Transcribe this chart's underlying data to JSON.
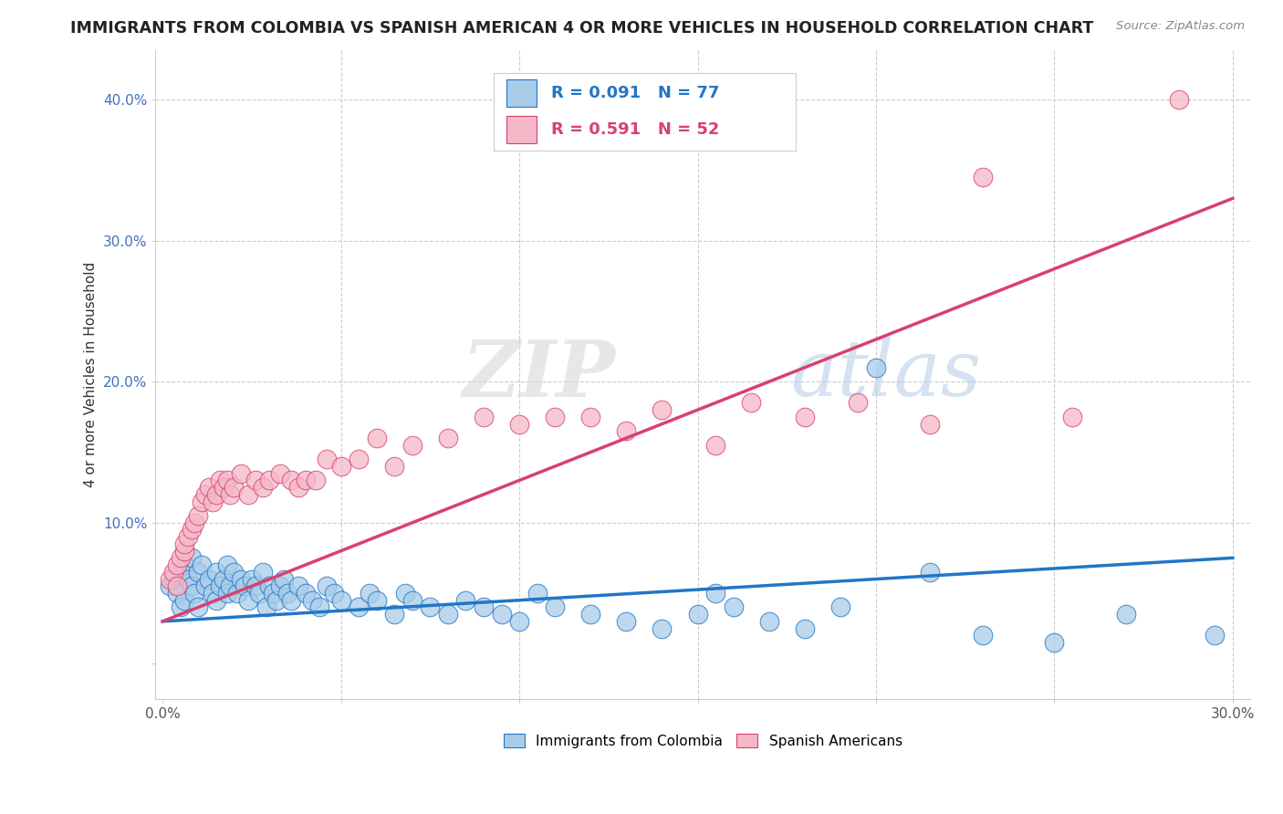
{
  "title": "IMMIGRANTS FROM COLOMBIA VS SPANISH AMERICAN 4 OR MORE VEHICLES IN HOUSEHOLD CORRELATION CHART",
  "source_text": "Source: ZipAtlas.com",
  "xlabel": "",
  "ylabel": "4 or more Vehicles in Household",
  "xlim": [
    -0.002,
    0.305
  ],
  "ylim": [
    -0.025,
    0.435
  ],
  "xticks": [
    0.0,
    0.05,
    0.1,
    0.15,
    0.2,
    0.25,
    0.3
  ],
  "xtick_labels": [
    "0.0%",
    "",
    "",
    "",
    "",
    "",
    "30.0%"
  ],
  "yticks": [
    0.0,
    0.1,
    0.2,
    0.3,
    0.4
  ],
  "ytick_labels": [
    "",
    "10.0%",
    "20.0%",
    "30.0%",
    "40.0%"
  ],
  "legend_blue_label": "Immigrants from Colombia",
  "legend_pink_label": "Spanish Americans",
  "legend_r_blue": "R = 0.091",
  "legend_n_blue": "N = 77",
  "legend_r_pink": "R = 0.591",
  "legend_n_pink": "N = 52",
  "blue_color": "#a8cce8",
  "pink_color": "#f4b8c8",
  "blue_line_color": "#2176c7",
  "pink_line_color": "#d94070",
  "watermark_zip": "ZIP",
  "watermark_atlas": "atlas",
  "background_color": "#ffffff",
  "grid_color": "#cccccc",
  "blue_line_x0": 0.0,
  "blue_line_y0": 0.03,
  "blue_line_x1": 0.3,
  "blue_line_y1": 0.075,
  "pink_line_x0": 0.0,
  "pink_line_y0": 0.03,
  "pink_line_x1": 0.3,
  "pink_line_y1": 0.33,
  "blue_scatter_x": [
    0.002,
    0.003,
    0.004,
    0.005,
    0.005,
    0.006,
    0.006,
    0.007,
    0.008,
    0.008,
    0.009,
    0.01,
    0.01,
    0.011,
    0.012,
    0.013,
    0.014,
    0.015,
    0.015,
    0.016,
    0.017,
    0.018,
    0.018,
    0.019,
    0.02,
    0.021,
    0.022,
    0.023,
    0.024,
    0.025,
    0.026,
    0.027,
    0.028,
    0.029,
    0.03,
    0.031,
    0.032,
    0.033,
    0.034,
    0.035,
    0.036,
    0.038,
    0.04,
    0.042,
    0.044,
    0.046,
    0.048,
    0.05,
    0.055,
    0.058,
    0.06,
    0.065,
    0.068,
    0.07,
    0.075,
    0.08,
    0.085,
    0.09,
    0.095,
    0.1,
    0.105,
    0.11,
    0.12,
    0.13,
    0.14,
    0.15,
    0.155,
    0.16,
    0.17,
    0.18,
    0.19,
    0.2,
    0.215,
    0.23,
    0.25,
    0.27,
    0.295
  ],
  "blue_scatter_y": [
    0.055,
    0.06,
    0.05,
    0.065,
    0.04,
    0.07,
    0.045,
    0.06,
    0.055,
    0.075,
    0.05,
    0.065,
    0.04,
    0.07,
    0.055,
    0.06,
    0.05,
    0.065,
    0.045,
    0.055,
    0.06,
    0.05,
    0.07,
    0.055,
    0.065,
    0.05,
    0.06,
    0.055,
    0.045,
    0.06,
    0.055,
    0.05,
    0.065,
    0.04,
    0.055,
    0.05,
    0.045,
    0.055,
    0.06,
    0.05,
    0.045,
    0.055,
    0.05,
    0.045,
    0.04,
    0.055,
    0.05,
    0.045,
    0.04,
    0.05,
    0.045,
    0.035,
    0.05,
    0.045,
    0.04,
    0.035,
    0.045,
    0.04,
    0.035,
    0.03,
    0.05,
    0.04,
    0.035,
    0.03,
    0.025,
    0.035,
    0.05,
    0.04,
    0.03,
    0.025,
    0.04,
    0.21,
    0.065,
    0.02,
    0.015,
    0.035,
    0.02
  ],
  "pink_scatter_x": [
    0.002,
    0.003,
    0.004,
    0.004,
    0.005,
    0.006,
    0.006,
    0.007,
    0.008,
    0.009,
    0.01,
    0.011,
    0.012,
    0.013,
    0.014,
    0.015,
    0.016,
    0.017,
    0.018,
    0.019,
    0.02,
    0.022,
    0.024,
    0.026,
    0.028,
    0.03,
    0.033,
    0.036,
    0.038,
    0.04,
    0.043,
    0.046,
    0.05,
    0.055,
    0.06,
    0.065,
    0.07,
    0.08,
    0.09,
    0.1,
    0.11,
    0.12,
    0.13,
    0.14,
    0.155,
    0.165,
    0.18,
    0.195,
    0.215,
    0.23,
    0.255,
    0.285
  ],
  "pink_scatter_y": [
    0.06,
    0.065,
    0.055,
    0.07,
    0.075,
    0.08,
    0.085,
    0.09,
    0.095,
    0.1,
    0.105,
    0.115,
    0.12,
    0.125,
    0.115,
    0.12,
    0.13,
    0.125,
    0.13,
    0.12,
    0.125,
    0.135,
    0.12,
    0.13,
    0.125,
    0.13,
    0.135,
    0.13,
    0.125,
    0.13,
    0.13,
    0.145,
    0.14,
    0.145,
    0.16,
    0.14,
    0.155,
    0.16,
    0.175,
    0.17,
    0.175,
    0.175,
    0.165,
    0.18,
    0.155,
    0.185,
    0.175,
    0.185,
    0.17,
    0.345,
    0.175,
    0.4
  ]
}
